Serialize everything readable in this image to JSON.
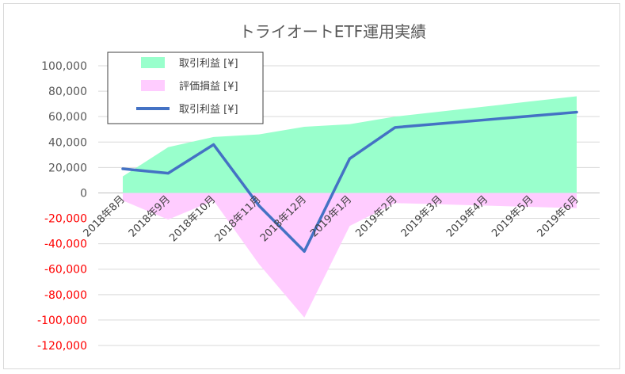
{
  "chart_data": {
    "type": "area",
    "title": "トライオートETF運用実績",
    "categories": [
      "2018年8月",
      "2018年9月",
      "2018年10月",
      "2018年11月",
      "2018年12月",
      "2019年1月",
      "2019年2月",
      "2019年3月",
      "2019年4月",
      "2019年5月",
      "2019年6月"
    ],
    "ylim": [
      -120000,
      100000
    ],
    "yticks": [
      "100,000",
      "80,000",
      "60,000",
      "40,000",
      "20,000",
      "0",
      "-20,000",
      "-40,000",
      "-60,000",
      "-80,000",
      "-100,000",
      "-120,000"
    ],
    "ytick_values": [
      100000,
      80000,
      60000,
      40000,
      20000,
      0,
      -20000,
      -40000,
      -60000,
      -80000,
      -100000,
      -120000
    ],
    "negative_tick_color": "#ff0000",
    "grid": true,
    "legend_position": "top-left",
    "series": [
      {
        "name": "取引利益 [¥]",
        "kind": "area",
        "color": "#99ffcc",
        "values": [
          13000,
          36000,
          44000,
          46000,
          52000,
          54000,
          60000,
          64000,
          68000,
          72000,
          76000
        ]
      },
      {
        "name": "評価損益 [¥]",
        "kind": "area",
        "color": "#ffccff",
        "values": [
          -6000,
          -21000,
          -6000,
          -56000,
          -98000,
          -26000,
          -8000,
          -9000,
          -10000,
          -11000,
          -12000
        ]
      },
      {
        "name": "取引利益 [¥]",
        "kind": "line",
        "color": "#4472c4",
        "values": [
          19000,
          15500,
          38000,
          -10000,
          -46000,
          27000,
          51500,
          54500,
          57500,
          60500,
          63500
        ]
      }
    ]
  }
}
